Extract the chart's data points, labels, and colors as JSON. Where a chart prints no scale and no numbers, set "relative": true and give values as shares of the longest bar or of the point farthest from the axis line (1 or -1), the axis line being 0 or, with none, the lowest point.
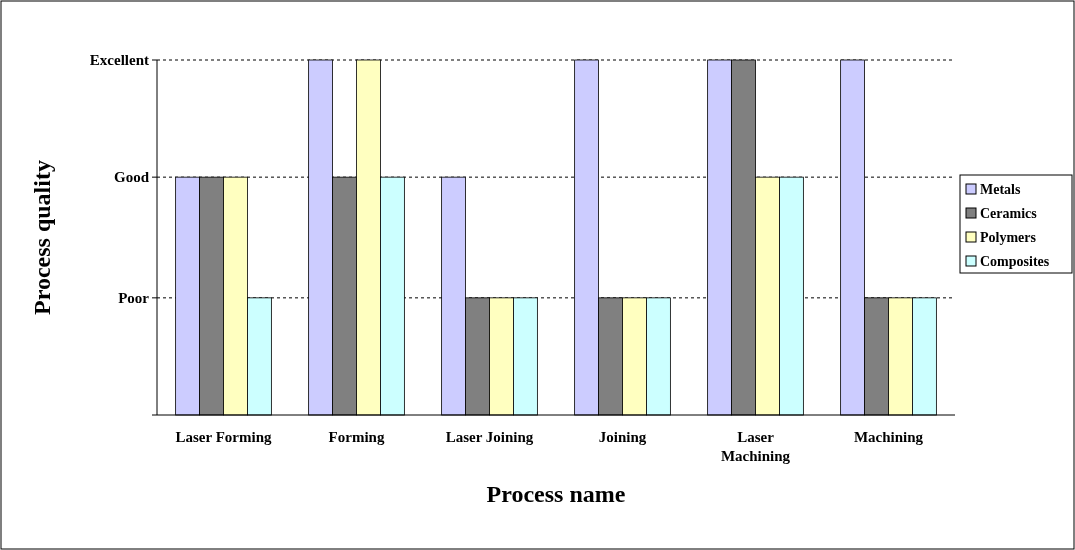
{
  "chart_data": {
    "type": "bar",
    "relative": true,
    "xlabel": "Process name",
    "ylabel": "Process quality",
    "categories": [
      "Laser Forming",
      "Forming",
      "Laser Joining",
      "Joining",
      "Laser Machining",
      "Machining"
    ],
    "series": [
      {
        "name": "Metals",
        "color": "#ccccff",
        "values": [
          0.67,
          1,
          0.67,
          1,
          1,
          1
        ]
      },
      {
        "name": "Ceramics",
        "color": "#808080",
        "values": [
          0.67,
          0.67,
          0.33,
          0.33,
          1,
          0.33
        ]
      },
      {
        "name": "Polymers",
        "color": "#ffffc0",
        "values": [
          0.67,
          1,
          0.33,
          0.33,
          0.67,
          0.33
        ]
      },
      {
        "name": "Composites",
        "color": "#ccffff",
        "values": [
          0.33,
          0.67,
          0.33,
          0.33,
          0.67,
          0.33
        ]
      }
    ],
    "ref_lines": [
      {
        "axis": "y",
        "value": 0.33,
        "label": "Poor",
        "line_style": "dashed"
      },
      {
        "axis": "y",
        "value": 0.67,
        "label": "Good",
        "line_style": "dashed"
      },
      {
        "axis": "y",
        "value": 1,
        "label": "Excellent",
        "line_style": "dashed"
      }
    ],
    "legend": "right"
  }
}
